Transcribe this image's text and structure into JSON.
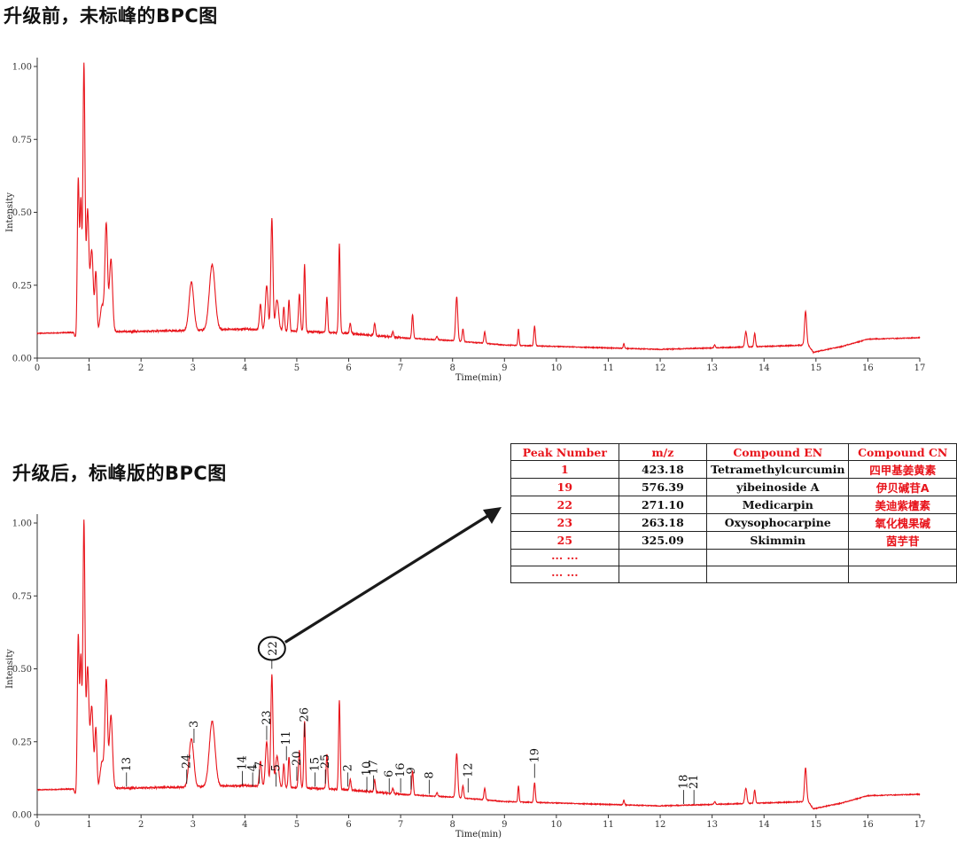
{
  "headings": {
    "top": "升级前，未标峰的BPC图",
    "bottom": "升级后，标峰版的BPC图"
  },
  "chart_data": [
    {
      "type": "line",
      "title": "升级前，未标峰的BPC图",
      "xlabel": "Time(min)",
      "ylabel": "Intensity",
      "xlim": [
        0,
        17
      ],
      "ylim": [
        0,
        1
      ],
      "xticks": [
        "0",
        "1",
        "2",
        "3",
        "4",
        "5",
        "6",
        "7",
        "8",
        "9",
        "10",
        "11",
        "12",
        "13",
        "14",
        "15",
        "16",
        "17"
      ],
      "yticks": [
        "0.00",
        "0.25",
        "0.50",
        "0.75",
        "1.00"
      ],
      "series_color": "#e8141b",
      "baseline": [
        [
          0,
          0.085
        ],
        [
          0.7,
          0.088
        ],
        [
          0.75,
          0.06
        ],
        [
          1.5,
          0.09
        ],
        [
          3,
          0.095
        ],
        [
          4,
          0.1
        ],
        [
          6,
          0.085
        ],
        [
          7,
          0.07
        ],
        [
          8,
          0.06
        ],
        [
          9,
          0.045
        ],
        [
          10,
          0.04
        ],
        [
          11,
          0.035
        ],
        [
          12,
          0.03
        ],
        [
          13,
          0.035
        ],
        [
          14,
          0.04
        ],
        [
          14.85,
          0.045
        ],
        [
          14.95,
          0.02
        ],
        [
          15.5,
          0.04
        ],
        [
          16,
          0.065
        ],
        [
          17,
          0.07
        ]
      ],
      "peaks": [
        [
          0.79,
          0.61,
          0.018
        ],
        [
          0.84,
          0.53,
          0.018
        ],
        [
          0.9,
          1.0,
          0.02
        ],
        [
          0.97,
          0.5,
          0.025
        ],
        [
          1.05,
          0.37,
          0.03
        ],
        [
          1.13,
          0.29,
          0.02
        ],
        [
          1.25,
          0.18,
          0.04
        ],
        [
          1.33,
          0.45,
          0.025
        ],
        [
          1.42,
          0.34,
          0.03
        ],
        [
          2.97,
          0.26,
          0.045
        ],
        [
          3.37,
          0.32,
          0.055
        ],
        [
          3.95,
          0.1,
          0.04
        ],
        [
          4.3,
          0.185,
          0.02
        ],
        [
          4.42,
          0.25,
          0.025
        ],
        [
          4.52,
          0.48,
          0.02
        ],
        [
          4.62,
          0.2,
          0.03
        ],
        [
          4.75,
          0.175,
          0.015
        ],
        [
          4.85,
          0.2,
          0.015
        ],
        [
          5.05,
          0.22,
          0.018
        ],
        [
          5.15,
          0.32,
          0.015
        ],
        [
          5.58,
          0.21,
          0.015
        ],
        [
          5.82,
          0.39,
          0.015
        ],
        [
          6.03,
          0.12,
          0.015
        ],
        [
          6.5,
          0.12,
          0.015
        ],
        [
          6.85,
          0.09,
          0.015
        ],
        [
          7.23,
          0.15,
          0.015
        ],
        [
          7.7,
          0.075,
          0.015
        ],
        [
          8.08,
          0.21,
          0.02
        ],
        [
          8.2,
          0.1,
          0.015
        ],
        [
          8.62,
          0.09,
          0.015
        ],
        [
          9.27,
          0.1,
          0.012
        ],
        [
          9.58,
          0.11,
          0.015
        ],
        [
          11.3,
          0.05,
          0.012
        ],
        [
          13.05,
          0.045,
          0.015
        ],
        [
          13.65,
          0.09,
          0.02
        ],
        [
          13.82,
          0.085,
          0.015
        ],
        [
          14.8,
          0.16,
          0.02
        ]
      ]
    },
    {
      "type": "line",
      "title": "升级后，标峰版的BPC图",
      "xlabel": "Time(min)",
      "ylabel": "Intensity",
      "xlim": [
        0,
        17
      ],
      "ylim": [
        0,
        1
      ],
      "xticks": [
        "0",
        "1",
        "2",
        "3",
        "4",
        "5",
        "6",
        "7",
        "8",
        "9",
        "10",
        "11",
        "12",
        "13",
        "14",
        "15",
        "16",
        "17"
      ],
      "yticks": [
        "0.00",
        "0.25",
        "0.50",
        "0.75",
        "1.00"
      ],
      "series_color": "#e8141b",
      "peak_labels": [
        {
          "label": "13",
          "x": 1.72,
          "y": 0.09
        },
        {
          "label": "24",
          "x": 2.88,
          "y": 0.1
        },
        {
          "label": "3",
          "x": 3.02,
          "y": 0.24
        },
        {
          "label": "14",
          "x": 3.95,
          "y": 0.095
        },
        {
          "label": "4",
          "x": 4.15,
          "y": 0.09
        },
        {
          "label": "7",
          "x": 4.28,
          "y": 0.1
        },
        {
          "label": "23",
          "x": 4.42,
          "y": 0.25
        },
        {
          "label": "5",
          "x": 4.6,
          "y": 0.09
        },
        {
          "label": "11",
          "x": 4.8,
          "y": 0.18
        },
        {
          "label": "20",
          "x": 5.0,
          "y": 0.11
        },
        {
          "label": "26",
          "x": 5.15,
          "y": 0.26
        },
        {
          "label": "15",
          "x": 5.35,
          "y": 0.09
        },
        {
          "label": "25",
          "x": 5.55,
          "y": 0.1
        },
        {
          "label": "2",
          "x": 5.98,
          "y": 0.09
        },
        {
          "label": "10",
          "x": 6.35,
          "y": 0.075
        },
        {
          "label": "17",
          "x": 6.48,
          "y": 0.08
        },
        {
          "label": "6",
          "x": 6.78,
          "y": 0.07
        },
        {
          "label": "16",
          "x": 7.0,
          "y": 0.07
        },
        {
          "label": "9",
          "x": 7.2,
          "y": 0.08
        },
        {
          "label": "8",
          "x": 7.55,
          "y": 0.065
        },
        {
          "label": "12",
          "x": 8.3,
          "y": 0.07
        },
        {
          "label": "19",
          "x": 9.58,
          "y": 0.12
        },
        {
          "label": "18",
          "x": 12.45,
          "y": 0.03
        },
        {
          "label": "21",
          "x": 12.65,
          "y": 0.03
        }
      ],
      "highlight_label": {
        "label": "22",
        "x": 4.52,
        "y": 0.5
      }
    }
  ],
  "table": {
    "headers": [
      "Peak Number",
      "m/z",
      "Compound EN",
      "Compound CN"
    ],
    "rows": [
      [
        "1",
        "423.18",
        "Tetramethylcurcumin",
        "四甲基姜黄素"
      ],
      [
        "19",
        "576.39",
        "yibeinoside A",
        "伊贝碱苷A"
      ],
      [
        "22",
        "271.10",
        "Medicarpin",
        "美迪紫檀素"
      ],
      [
        "23",
        "263.18",
        "Oxysophocarpine",
        "氧化槐果碱"
      ],
      [
        "25",
        "325.09",
        "Skimmin",
        "茵芋苷"
      ],
      [
        "··· ···",
        "",
        "",
        ""
      ],
      [
        "··· ···",
        "",
        "",
        ""
      ]
    ]
  }
}
